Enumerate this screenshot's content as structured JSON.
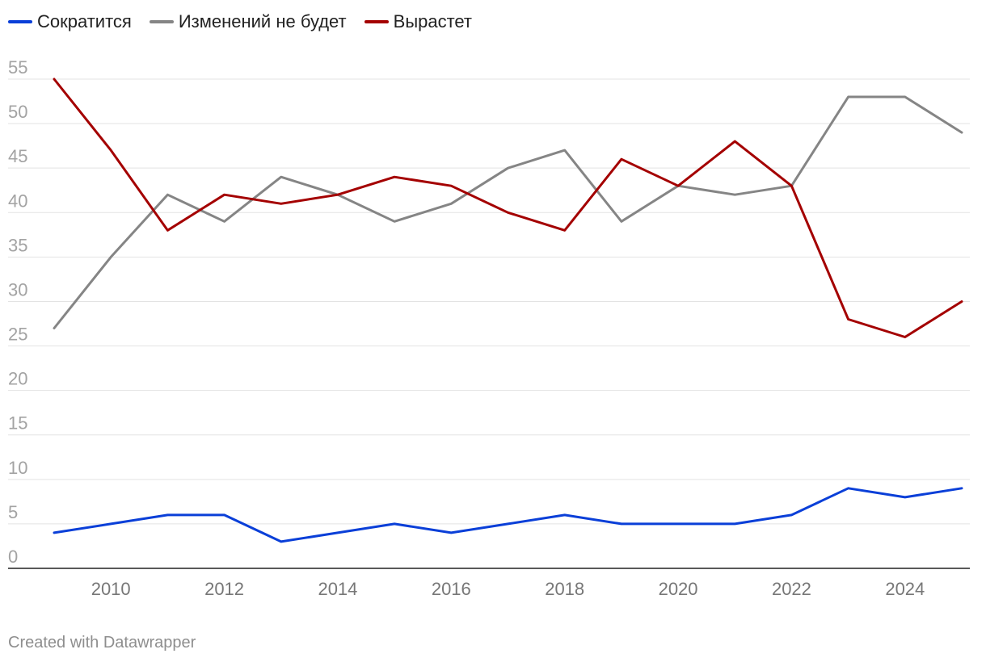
{
  "chart_data": {
    "type": "line",
    "title": "",
    "xlabel": "",
    "ylabel": "",
    "x": [
      2009,
      2010,
      2011,
      2012,
      2013,
      2014,
      2015,
      2016,
      2017,
      2018,
      2019,
      2020,
      2021,
      2022,
      2023,
      2024,
      2025
    ],
    "xlim": [
      2008,
      2025.3
    ],
    "ylim": [
      0,
      55
    ],
    "x_ticks": [
      2010,
      2012,
      2014,
      2016,
      2018,
      2020,
      2022,
      2024
    ],
    "x_tick_labels": [
      "2010",
      "2012",
      "2014",
      "2016",
      "2018",
      "2020",
      "2022",
      "2024"
    ],
    "y_ticks": [
      0,
      5,
      10,
      15,
      20,
      25,
      30,
      35,
      40,
      45,
      50,
      55
    ],
    "y_tick_labels": [
      "0",
      "5",
      "10",
      "15",
      "20",
      "25",
      "30",
      "35",
      "40",
      "45",
      "50",
      "55"
    ],
    "grid": true,
    "legend_position": "top-left",
    "series": [
      {
        "name": "Сократится",
        "key": "decrease",
        "color": "#0a3fd8",
        "values": [
          4,
          5,
          6,
          6,
          3,
          4,
          5,
          4,
          5,
          6,
          5,
          5,
          5,
          6,
          9,
          8,
          9
        ]
      },
      {
        "name": "Изменений не будет",
        "key": "no-change",
        "color": "#858585",
        "values": [
          27,
          35,
          42,
          39,
          44,
          42,
          39,
          41,
          45,
          47,
          39,
          43,
          42,
          43,
          53,
          53,
          49
        ]
      },
      {
        "name": "Вырастет",
        "key": "increase",
        "color": "#a40000",
        "values": [
          55,
          47,
          38,
          42,
          41,
          42,
          44,
          43,
          40,
          38,
          46,
          43,
          48,
          43,
          28,
          26,
          30
        ]
      }
    ],
    "source_note": "Created with Datawrapper"
  }
}
